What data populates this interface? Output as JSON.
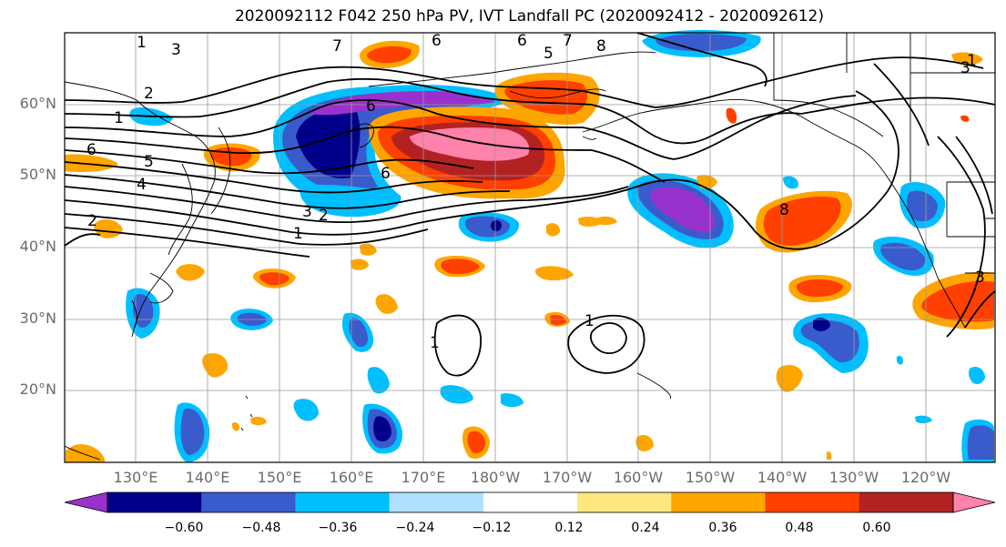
{
  "title": "2020092112 F042 250 hPa PV, IVT Landfall PC (2020092412 - 2020092612)",
  "axes": {
    "lat_labels": [
      "60°N",
      "50°N",
      "40°N",
      "30°N",
      "20°N"
    ],
    "lon_labels": [
      "130°E",
      "140°E",
      "150°E",
      "160°E",
      "170°E",
      "180°W",
      "170°W",
      "160°W",
      "150°W",
      "140°W",
      "130°W",
      "120°W"
    ]
  },
  "contour_labels": [
    "1",
    "3",
    "7",
    "6",
    "6",
    "7",
    "8",
    "5",
    "2",
    "1",
    "6",
    "5",
    "4",
    "2",
    "3",
    "2",
    "1",
    "6",
    "6",
    "8",
    "3",
    "1",
    "1",
    "1",
    "3"
  ],
  "colorbar": {
    "ticks": [
      "−0.60",
      "−0.48",
      "−0.36",
      "−0.24",
      "−0.12",
      "0.12",
      "0.24",
      "0.36",
      "0.48",
      "0.60"
    ],
    "colors": [
      "#9932cc",
      "#00008b",
      "#3a5bcc",
      "#00bfff",
      "#b0e0ff",
      "#ffffff",
      "#ffe680",
      "#ffa500",
      "#ff4000",
      "#b22222",
      "#ff82ab"
    ]
  }
}
